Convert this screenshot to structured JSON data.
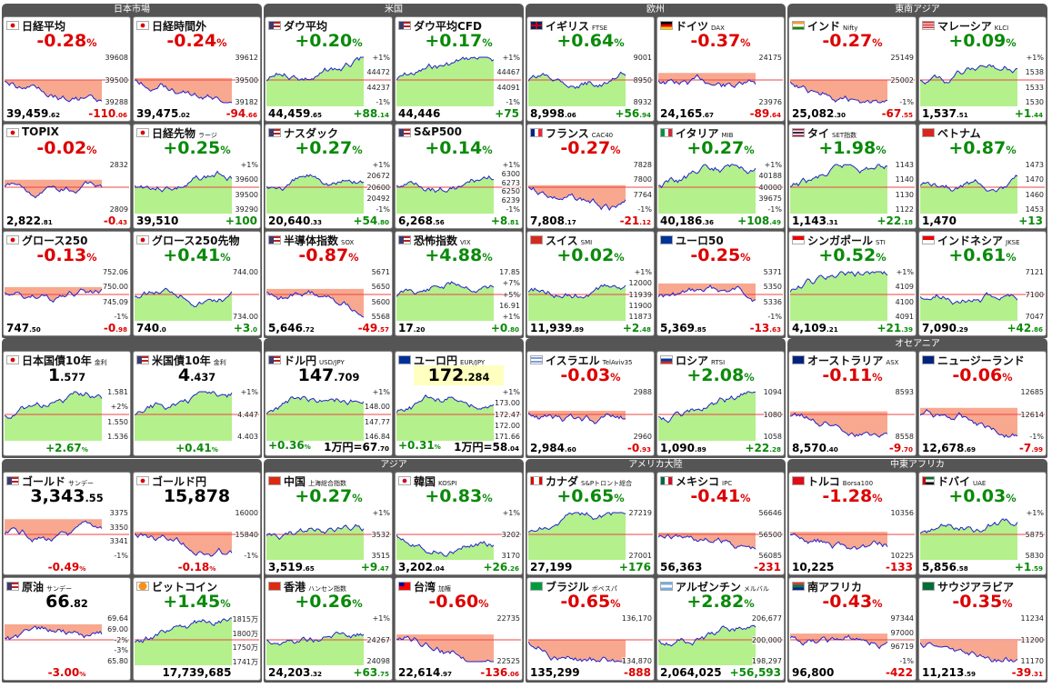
{
  "blocks": [
    {
      "groups": [
        {
          "header": "日本市場",
          "tiles": [
            {
              "name": "日経平均",
              "big": "-0.28%",
              "axis": [
                "39608",
                "39500",
                "39288"
              ],
              "foot": [
                "39,459.62",
                "-110.06"
              ]
            },
            {
              "name": "日経時間外",
              "big": "-0.24%",
              "axis": [
                "39612",
                "39500",
                "39182"
              ],
              "foot": [
                "39,475.02",
                "-94.66"
              ]
            },
            {
              "name": "TOPIX",
              "big": "-0.02%",
              "axis": [
                "2832",
                "2809"
              ],
              "foot": [
                "2,822.81",
                "-0.43"
              ]
            },
            {
              "name": "日経先物",
              "sub": "ラージ",
              "big": "+0.25%",
              "axis": [
                "+1%",
                "39600",
                "39500",
                "39290"
              ],
              "foot": [
                "39,510",
                "+100"
              ]
            },
            {
              "name": "グロース250",
              "big": "-0.13%",
              "axis": [
                "752.06",
                "750.00",
                "745.09",
                "-1%"
              ],
              "foot": [
                "747.50",
                "-0.98"
              ]
            },
            {
              "name": "グロース250先物",
              "big": "+0.41%",
              "axis": [
                "744.00",
                "734.00"
              ],
              "foot": [
                "740.0",
                "+3.0"
              ]
            }
          ]
        },
        {
          "header": "米国",
          "tiles": [
            {
              "name": "ダウ平均",
              "big": "+0.20%",
              "axis": [
                "+1%",
                "44472",
                "44237",
                "-1%"
              ],
              "foot": [
                "44,459.65",
                "+88.14"
              ]
            },
            {
              "name": "ダウ平均CFD",
              "big": "+0.17%",
              "axis": [
                "+1%",
                "44467",
                "44091",
                "-1%"
              ],
              "foot": [
                "44,446",
                "+75"
              ]
            },
            {
              "name": "ナスダック",
              "big": "+0.27%",
              "axis": [
                "+1%",
                "20672",
                "20600",
                "20492",
                "-1%"
              ],
              "foot": [
                "20,640.33",
                "+54.80"
              ]
            },
            {
              "name": "S&P500",
              "big": "+0.14%",
              "axis": [
                "+1%",
                "6300",
                "6273",
                "6250",
                "6239",
                "-1%"
              ],
              "foot": [
                "6,268.56",
                "+8.81"
              ]
            },
            {
              "name": "半導体指数",
              "sub": "SOX",
              "big": "-0.87%",
              "axis": [
                "5671",
                "5650",
                "5600",
                "5568"
              ],
              "foot": [
                "5,646.72",
                "-49.57"
              ]
            },
            {
              "name": "恐怖指数",
              "sub": "VIX",
              "big": "+4.88%",
              "axis": [
                "17.85",
                "+7%",
                "+5%",
                "16.91",
                "+1%"
              ],
              "foot": [
                "17.20",
                "+0.80"
              ]
            }
          ]
        },
        {
          "header": "欧州",
          "tiles": [
            {
              "name": "イギリス",
              "sub": "FTSE",
              "big": "+0.64%",
              "axis": [
                "9001",
                "8950",
                "8932"
              ],
              "foot": [
                "8,998.06",
                "+56.94"
              ]
            },
            {
              "name": "ドイツ",
              "sub": "DAX",
              "big": "-0.37%",
              "axis": [
                "24175",
                "23976"
              ],
              "foot": [
                "24,165.67",
                "-89.64"
              ]
            },
            {
              "name": "フランス",
              "sub": "CAC40",
              "big": "-0.27%",
              "axis": [
                "7828",
                "7800",
                "7764",
                "-1%"
              ],
              "foot": [
                "7,808.17",
                "-21.12"
              ]
            },
            {
              "name": "イタリア",
              "sub": "MIB",
              "big": "+0.27%",
              "axis": [
                "+1%",
                "40188",
                "40000",
                "39675",
                "-1%"
              ],
              "foot": [
                "40,186.36",
                "+108.49"
              ]
            },
            {
              "name": "スイス",
              "sub": "SMI",
              "big": "+0.02%",
              "axis": [
                "+1%",
                "12000",
                "11939",
                "11900",
                "11873"
              ],
              "foot": [
                "11,939.89",
                "+2.48"
              ]
            },
            {
              "name": "ユーロ50",
              "big": "-0.25%",
              "axis": [
                "5371",
                "5350",
                "5336",
                "-1%"
              ],
              "foot": [
                "5,369.85",
                "-13.63"
              ]
            }
          ]
        },
        {
          "header": "東南アジア",
          "tiles": [
            {
              "name": "インド",
              "sub": "Nifty",
              "big": "-0.27%",
              "axis": [
                "25149",
                "25002",
                "-1%"
              ],
              "foot": [
                "25,082.30",
                "-67.55"
              ]
            },
            {
              "name": "マレーシア",
              "sub": "KLCI",
              "big": "+0.09%",
              "axis": [
                "+1%",
                "1538",
                "1533",
                "1530"
              ],
              "foot": [
                "1,537.51",
                "+1.44"
              ]
            },
            {
              "name": "タイ",
              "sub": "SET指数",
              "big": "+1.98%",
              "axis": [
                "1143",
                "1140",
                "1130",
                "1122"
              ],
              "foot": [
                "1,143.31",
                "+22.18"
              ]
            },
            {
              "name": "ベトナム",
              "big": "+0.87%",
              "axis": [
                "1473",
                "1470",
                "1460",
                "1453"
              ],
              "foot": [
                "1,470",
                "+13"
              ]
            },
            {
              "name": "シンガポール",
              "sub": "STI",
              "big": "+0.52%",
              "axis": [
                "+1%",
                "4109",
                "4100",
                "4091"
              ],
              "foot": [
                "4,109.21",
                "+21.39"
              ]
            },
            {
              "name": "インドネシア",
              "sub": "JKSE",
              "big": "+0.61%",
              "axis": [
                "7121",
                "7100",
                "7047"
              ],
              "foot": [
                "7,090.29",
                "+42.86"
              ]
            }
          ]
        }
      ]
    },
    {
      "groups": [
        {
          "tiles": [
            {
              "name": "日本国債10年",
              "sub": "金利",
              "big": "1.577",
              "axis": [
                "1.581",
                "+2%",
                "1.550",
                "1.536"
              ],
              "foot": [
                "+2.67%"
              ]
            },
            {
              "name": "米国債10年",
              "sub": "金利",
              "big": "4.437",
              "axis": [
                "+1%",
                "4.447",
                "4.403"
              ],
              "foot": [
                "+0.41%"
              ]
            }
          ]
        },
        {
          "tiles": [
            {
              "name": "ドル円",
              "sub": "USD/JPY",
              "big": "147.709",
              "axis": [
                "+1%",
                "148.00",
                "147.77",
                "146.84"
              ],
              "foot": [
                "+0.36%",
                "1万円=67.70"
              ]
            },
            {
              "name": "ユーロ円",
              "sub": "EUR/JPY",
              "big": "172.284",
              "axis": [
                "+1%",
                "173.00",
                "172.47",
                "172.00",
                "171.66"
              ],
              "foot": [
                "+0.31%",
                "1万円=58.04"
              ]
            }
          ]
        },
        {
          "tiles": [
            {
              "name": "イスラエル",
              "sub": "TelAviv35",
              "big": "-0.03%",
              "axis": [
                "2988",
                "2960"
              ],
              "foot": [
                "2,984.60",
                "-0.93"
              ]
            },
            {
              "name": "ロシア",
              "sub": "RTSI",
              "big": "+2.08%",
              "axis": [
                "1094",
                "1080",
                "1058"
              ],
              "foot": [
                "1,090.89",
                "+22.28"
              ]
            }
          ]
        },
        {
          "header": "オセアニア",
          "tiles": [
            {
              "name": "オーストラリア",
              "sub": "ASX",
              "big": "-0.11%",
              "axis": [
                "8593",
                "8558"
              ],
              "foot": [
                "8,570.40",
                "-9.70"
              ]
            },
            {
              "name": "ニュージーランド",
              "big": "-0.06%",
              "axis": [
                "12685",
                "12614",
                "-1%"
              ],
              "foot": [
                "12,678.69",
                "-7.99"
              ]
            }
          ]
        }
      ]
    },
    {
      "groups": [
        {
          "tiles": [
            {
              "name": "ゴールド",
              "sub": "サンデー",
              "big": "3,343.55",
              "axis": [
                "3375",
                "3350",
                "3341",
                "-1%"
              ],
              "foot": [
                "-0.49%"
              ]
            },
            {
              "name": "ゴールド円",
              "big": "15,878",
              "axis": [
                "16000",
                "15840",
                "-1%"
              ],
              "foot": [
                "-0.18%"
              ]
            },
            {
              "name": "原油",
              "sub": "サンデー",
              "big": "66.82",
              "axis": [
                "69.64",
                "69.00",
                "-2%",
                "-3%",
                "65.80"
              ],
              "foot": [
                "-3.00%"
              ]
            },
            {
              "name": "ビットコイン",
              "big": "+1.45%",
              "axis": [
                "1815万",
                "1800万",
                "1750万",
                "1741万"
              ],
              "foot": [
                "17,739,685"
              ]
            }
          ]
        },
        {
          "header": "アジア",
          "tiles": [
            {
              "name": "中国",
              "sub": "上海総合指数",
              "big": "+0.27%",
              "axis": [
                "+1%",
                "3532",
                "3515"
              ],
              "foot": [
                "3,519.65",
                "+9.47"
              ]
            },
            {
              "name": "韓国",
              "sub": "KOSPI",
              "big": "+0.83%",
              "axis": [
                "+1%",
                "3202",
                "3170"
              ],
              "foot": [
                "3,202.04",
                "+26.26"
              ]
            },
            {
              "name": "香港",
              "sub": "ハンセン指数",
              "big": "+0.26%",
              "axis": [
                "+1%",
                "24267",
                "24098"
              ],
              "foot": [
                "24,203.32",
                "+63.75"
              ]
            },
            {
              "name": "台湾",
              "sub": "加権",
              "big": "-0.60%",
              "axis": [
                "22735",
                "22525"
              ],
              "foot": [
                "22,614.97",
                "-136.06"
              ]
            }
          ]
        },
        {
          "header": "アメリカ大陸",
          "tiles": [
            {
              "name": "カナダ",
              "sub": "S&Pトロント総合",
              "big": "+0.65%",
              "axis": [
                "27219",
                "27001"
              ],
              "foot": [
                "27,199",
                "+176"
              ]
            },
            {
              "name": "メキシコ",
              "sub": "IPC",
              "big": "-0.41%",
              "axis": [
                "56646",
                "56500",
                "56085"
              ],
              "foot": [
                "56,363",
                "-231"
              ]
            },
            {
              "name": "ブラジル",
              "sub": "ボベスパ",
              "big": "-0.65%",
              "axis": [
                "136,170",
                "134,870"
              ],
              "foot": [
                "135,299",
                "-888"
              ]
            },
            {
              "name": "アルゼンチン",
              "sub": "メルバル",
              "big": "+2.82%",
              "axis": [
                "206,677",
                "200,000",
                "198,297"
              ],
              "foot": [
                "2,064,025",
                "+56,593"
              ]
            }
          ]
        },
        {
          "header": "中東アフリカ",
          "tiles": [
            {
              "name": "トルコ",
              "sub": "Borsa100",
              "big": "-1.28%",
              "axis": [
                "10356",
                "10225"
              ],
              "foot": [
                "10,225",
                "-133"
              ]
            },
            {
              "name": "ドバイ",
              "sub": "UAE",
              "big": "+0.03%",
              "axis": [
                "+1%",
                "5875",
                "5830"
              ],
              "foot": [
                "5,856.58",
                "+1.59"
              ]
            },
            {
              "name": "南アフリカ",
              "big": "-0.43%",
              "axis": [
                "97344",
                "97000",
                "96719",
                "-1%"
              ],
              "foot": [
                "96,800",
                "-422"
              ]
            },
            {
              "name": "サウジアラビア",
              "big": "-0.35%",
              "axis": [
                "11234",
                "11200",
                "11170"
              ],
              "foot": [
                "11,213.59",
                "-39.31"
              ]
            }
          ]
        }
      ]
    }
  ]
}
